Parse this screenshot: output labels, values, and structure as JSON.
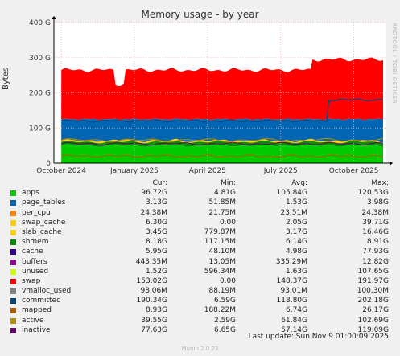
{
  "title": "Memory usage - by year",
  "side_text": "RRDTOOL / TOBI OETIKER",
  "chart_data": {
    "type": "area",
    "ylabel": "Bytes",
    "y_ticks": [
      "0",
      "100 G",
      "200 G",
      "300 G",
      "400 G"
    ],
    "ylim": [
      0,
      400
    ],
    "x_ticks": [
      "October 2024",
      "January 2025",
      "April 2025",
      "July 2025",
      "October 2025"
    ],
    "x_months": [
      0,
      3,
      6,
      9,
      12
    ],
    "xlim": [
      -0.3,
      13.3
    ],
    "grid": true,
    "series_stack_approx": {
      "apps": 50,
      "committed": 120,
      "swap_top": 265,
      "swap_top_late": 295,
      "cache": 125
    }
  },
  "legend": {
    "headers": {
      "cur": "Cur:",
      "min": "Min:",
      "avg": "Avg:",
      "max": "Max:"
    },
    "rows": [
      {
        "name": "apps",
        "color": "#00cc00",
        "cur": "96.72G",
        "min": "4.81G",
        "avg": "105.84G",
        "max": "120.53G"
      },
      {
        "name": "page_tables",
        "color": "#0066b3",
        "cur": "3.13G",
        "min": "51.85M",
        "avg": "1.53G",
        "max": "3.98G"
      },
      {
        "name": "per_cpu",
        "color": "#ff8000",
        "cur": "24.38M",
        "min": "21.75M",
        "avg": "23.51M",
        "max": "24.38M"
      },
      {
        "name": "swap_cache",
        "color": "#ffcc00",
        "cur": "6.30G",
        "min": "0.00",
        "avg": "2.05G",
        "max": "39.71G"
      },
      {
        "name": "slab_cache",
        "color": "#ffd000",
        "cur": "3.45G",
        "min": "779.87M",
        "avg": "3.17G",
        "max": "16.46G"
      },
      {
        "name": "shmem",
        "color": "#008f00",
        "cur": "8.18G",
        "min": "117.15M",
        "avg": "6.14G",
        "max": "8.91G"
      },
      {
        "name": "cache",
        "color": "#330099",
        "cur": "5.95G",
        "min": "48.10M",
        "avg": "4.98G",
        "max": "77.93G"
      },
      {
        "name": "buffers",
        "color": "#990099",
        "cur": "443.35M",
        "min": "13.05M",
        "avg": "335.29M",
        "max": "12.82G"
      },
      {
        "name": "unused",
        "color": "#ccff00",
        "cur": "1.52G",
        "min": "596.34M",
        "avg": "1.63G",
        "max": "107.65G"
      },
      {
        "name": "swap",
        "color": "#ff0000",
        "cur": "153.02G",
        "min": "0.00",
        "avg": "148.37G",
        "max": "191.97G"
      },
      {
        "name": "vmalloc_used",
        "color": "#808080",
        "cur": "98.06M",
        "min": "88.19M",
        "avg": "93.01M",
        "max": "100.30M"
      },
      {
        "name": "committed",
        "color": "#00487d",
        "cur": "190.34G",
        "min": "6.59G",
        "avg": "118.80G",
        "max": "202.18G"
      },
      {
        "name": "mapped",
        "color": "#b35a00",
        "cur": "8.93G",
        "min": "188.22M",
        "avg": "6.74G",
        "max": "26.17G"
      },
      {
        "name": "active",
        "color": "#b38f00",
        "cur": "39.55G",
        "min": "2.59G",
        "avg": "61.84G",
        "max": "102.69G"
      },
      {
        "name": "inactive",
        "color": "#6b006b",
        "cur": "77.63G",
        "min": "6.65G",
        "avg": "57.14G",
        "max": "119.09G"
      }
    ]
  },
  "last_update": "Last update: Sun Nov  9 01:00:09 2025",
  "footer": "Munin 2.0.73"
}
